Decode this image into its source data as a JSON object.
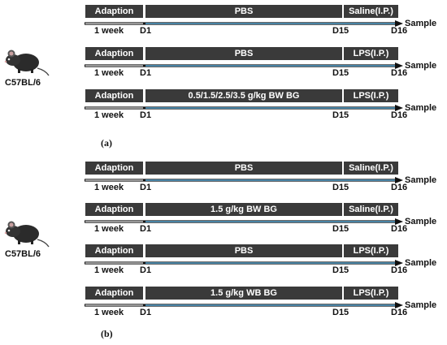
{
  "panels": [
    {
      "label": "(a)",
      "strain": "C57BL/6",
      "rows": [
        {
          "adaption": "Adaption",
          "treatment": "PBS",
          "injection": "Saline(I.P.)",
          "week": "1 week",
          "d1": "D1",
          "d15": "D15",
          "d16": "D16",
          "sample": "Sample"
        },
        {
          "adaption": "Adaption",
          "treatment": "PBS",
          "injection": "LPS(I.P.)",
          "week": "1 week",
          "d1": "D1",
          "d15": "D15",
          "d16": "D16",
          "sample": "Sample"
        },
        {
          "adaption": "Adaption",
          "treatment": "0.5/1.5/2.5/3.5 g/kg BW BG",
          "injection": "LPS(I.P.)",
          "week": "1 week",
          "d1": "D1",
          "d15": "D15",
          "d16": "D16",
          "sample": "Sample"
        }
      ]
    },
    {
      "label": "(b)",
      "strain": "C57BL/6",
      "rows": [
        {
          "adaption": "Adaption",
          "treatment": "PBS",
          "injection": "Saline(I.P.)",
          "week": "1 week",
          "d1": "D1",
          "d15": "D15",
          "d16": "D16",
          "sample": "Sample"
        },
        {
          "adaption": "Adaption",
          "treatment": "1.5 g/kg BW BG",
          "injection": "Saline(I.P.)",
          "week": "1 week",
          "d1": "D1",
          "d15": "D15",
          "d16": "D16",
          "sample": "Sample"
        },
        {
          "adaption": "Adaption",
          "treatment": "PBS",
          "injection": "LPS(I.P.)",
          "week": "1 week",
          "d1": "D1",
          "d15": "D15",
          "d16": "D16",
          "sample": "Sample"
        },
        {
          "adaption": "Adaption",
          "treatment": "1.5 g/kg WB BG",
          "injection": "LPS(I.P.)",
          "week": "1 week",
          "d1": "D1",
          "d15": "D15",
          "d16": "D16",
          "sample": "Sample"
        }
      ]
    }
  ],
  "colors": {
    "header": "#3a3a3a",
    "timeline": "#5aa9d6",
    "adaption_line": "#e6e6e6",
    "arrow": "#111111"
  },
  "icons": {
    "mouse": "mouse-icon"
  }
}
